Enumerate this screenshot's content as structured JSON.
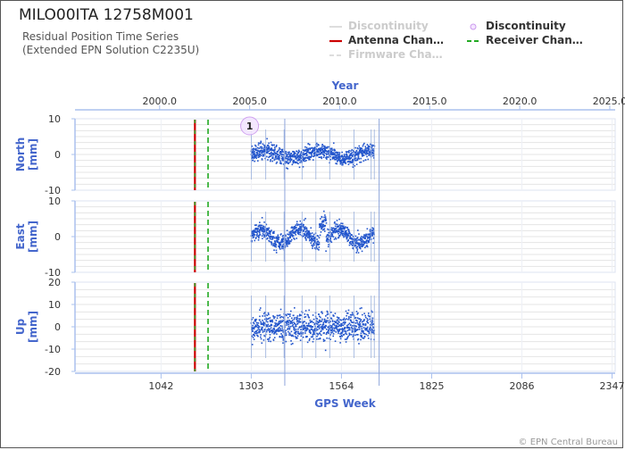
{
  "header": {
    "title": "MILO00ITA 12758M001",
    "subtitle_line1": "Residual Position Time Series",
    "subtitle_line2": "(Extended EPN Solution C2235U)"
  },
  "legend": [
    {
      "label": "Discontinuity",
      "style": "line",
      "color": "#dddddd",
      "active": false
    },
    {
      "label": "Discontinuity",
      "style": "dot",
      "color": "#cc99ee",
      "active": true
    },
    {
      "label": "Antenna Chan…",
      "style": "line",
      "color": "#cc0000",
      "active": true
    },
    {
      "label": "Receiver Chan…",
      "style": "dash",
      "color": "#22aa22",
      "active": true
    },
    {
      "label": "Firmware Cha…",
      "style": "dash",
      "color": "#dddddd",
      "active": false
    }
  ],
  "copyright": "© EPN Central Bureau",
  "colors": {
    "series": "#2255cc",
    "axis_label": "#4466cc",
    "antenna": "#cc0000",
    "receiver": "#22aa22",
    "discontinuity": "#cc99ee",
    "grid": "#e4e4e4"
  },
  "chart_data": {
    "type": "scatter",
    "top_axis": {
      "label": "Year",
      "ticks": [
        "2000.0",
        "2005.0",
        "2010.0",
        "2015.0",
        "2020.0",
        "2025.0"
      ],
      "range": [
        1995.3,
        2025.3
      ]
    },
    "bottom_axis": {
      "label": "GPS Week",
      "ticks": [
        "1042",
        "1303",
        "1564",
        "1825",
        "2086",
        "2347"
      ],
      "range": [
        793,
        2356
      ]
    },
    "panels": [
      {
        "name": "North",
        "ylabel": "North\n[mm]",
        "ylim": [
          -10,
          10
        ],
        "ticks": [
          "10",
          "0",
          "-10"
        ],
        "tick_values": [
          10,
          0,
          -10
        ],
        "noise": 1.6
      },
      {
        "name": "East",
        "ylabel": "East\n[mm]",
        "ylim": [
          -10,
          10
        ],
        "ticks": [
          "10",
          "0",
          "-10"
        ],
        "tick_values": [
          10,
          0,
          -10
        ],
        "noise": 1.6
      },
      {
        "name": "Up",
        "ylabel": "Up\n[mm]",
        "ylim": [
          -20,
          20
        ],
        "ticks": [
          "20",
          "10",
          "0",
          "-10",
          "-20"
        ],
        "tick_values": [
          20,
          10,
          0,
          -10,
          -20
        ],
        "noise": 4.5
      }
    ],
    "data_span_weeks": [
      1303,
      1659
    ],
    "antenna_change_week": 1140,
    "receiver_change_week": 1178,
    "discontinuities": [
      {
        "label": "1",
        "week": 1306,
        "panel": "North",
        "y": 8
      }
    ],
    "grid": true
  }
}
